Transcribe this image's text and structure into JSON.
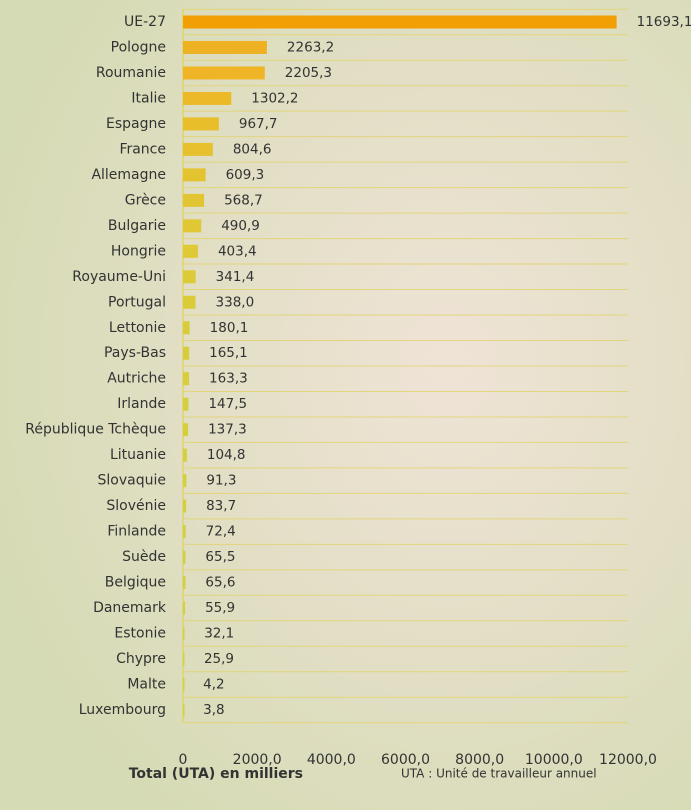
{
  "chart_data": {
    "type": "hbar",
    "title": "Total (UTA) en milliers",
    "note": "UTA : Unité de travailleur annuel",
    "categories": [
      "UE-27",
      "Pologne",
      "Roumanie",
      "Italie",
      "Espagne",
      "France",
      "Allemagne",
      "Grèce",
      "Bulgarie",
      "Hongrie",
      "Royaume-Uni",
      "Portugal",
      "Lettonie",
      "Pays-Bas",
      "Autriche",
      "Irlande",
      "République Tchèque",
      "Lituanie",
      "Slovaquie",
      "Slovénie",
      "Finlande",
      "Suède",
      "Belgique",
      "Danemark",
      "Estonie",
      "Chypre",
      "Malte",
      "Luxembourg"
    ],
    "values": [
      11693.1,
      2263.2,
      2205.3,
      1302.2,
      967.7,
      804.6,
      609.3,
      568.7,
      490.9,
      403.4,
      341.4,
      338.0,
      180.1,
      165.1,
      163.3,
      147.5,
      137.3,
      104.8,
      91.3,
      83.7,
      72.4,
      65.5,
      65.6,
      55.9,
      32.1,
      25.9,
      4.2,
      3.8
    ],
    "value_labels": [
      "11693,1",
      "2263,2",
      "2205,3",
      "1302,2",
      "967,7",
      "804,6",
      "609,3",
      "568,7",
      "490,9",
      "403,4",
      "341,4",
      "338,0",
      "180,1",
      "165,1",
      "163,3",
      "147,5",
      "137,3",
      "104,8",
      "91,3",
      "83,7",
      "72,4",
      "65,5",
      "65,6",
      "55,9",
      "32,1",
      "25,9",
      "4,2",
      "3,8"
    ],
    "colors": [
      "#f29f05",
      "#efb124",
      "#efb526",
      "#ecba28",
      "#e9be2b",
      "#e6c02d",
      "#e4c330",
      "#e2c532",
      "#e0c734",
      "#dec936",
      "#dcca38",
      "#dacb39",
      "#d8cc3b",
      "#d7cd3c",
      "#d6ce3d",
      "#d5ce3e",
      "#d4cf3f",
      "#d3cf40",
      "#d2d041",
      "#d2d041",
      "#d1d042",
      "#d1d042",
      "#d1d042",
      "#d0d143",
      "#d0d143",
      "#d0d143",
      "#d0d143",
      "#d0d143"
    ],
    "xlim": [
      0,
      12000
    ],
    "xticks": [
      0,
      {
        "value": 2000,
        "label": "2000,0"
      },
      {
        "value": 4000,
        "label": "4000,0"
      },
      {
        "value": 6000,
        "label": "6000,0"
      },
      {
        "value": 8000,
        "label": "8000,0"
      },
      {
        "value": 10000,
        "label": "10000,0"
      },
      {
        "value": 12000,
        "label": "12000,0"
      }
    ]
  }
}
